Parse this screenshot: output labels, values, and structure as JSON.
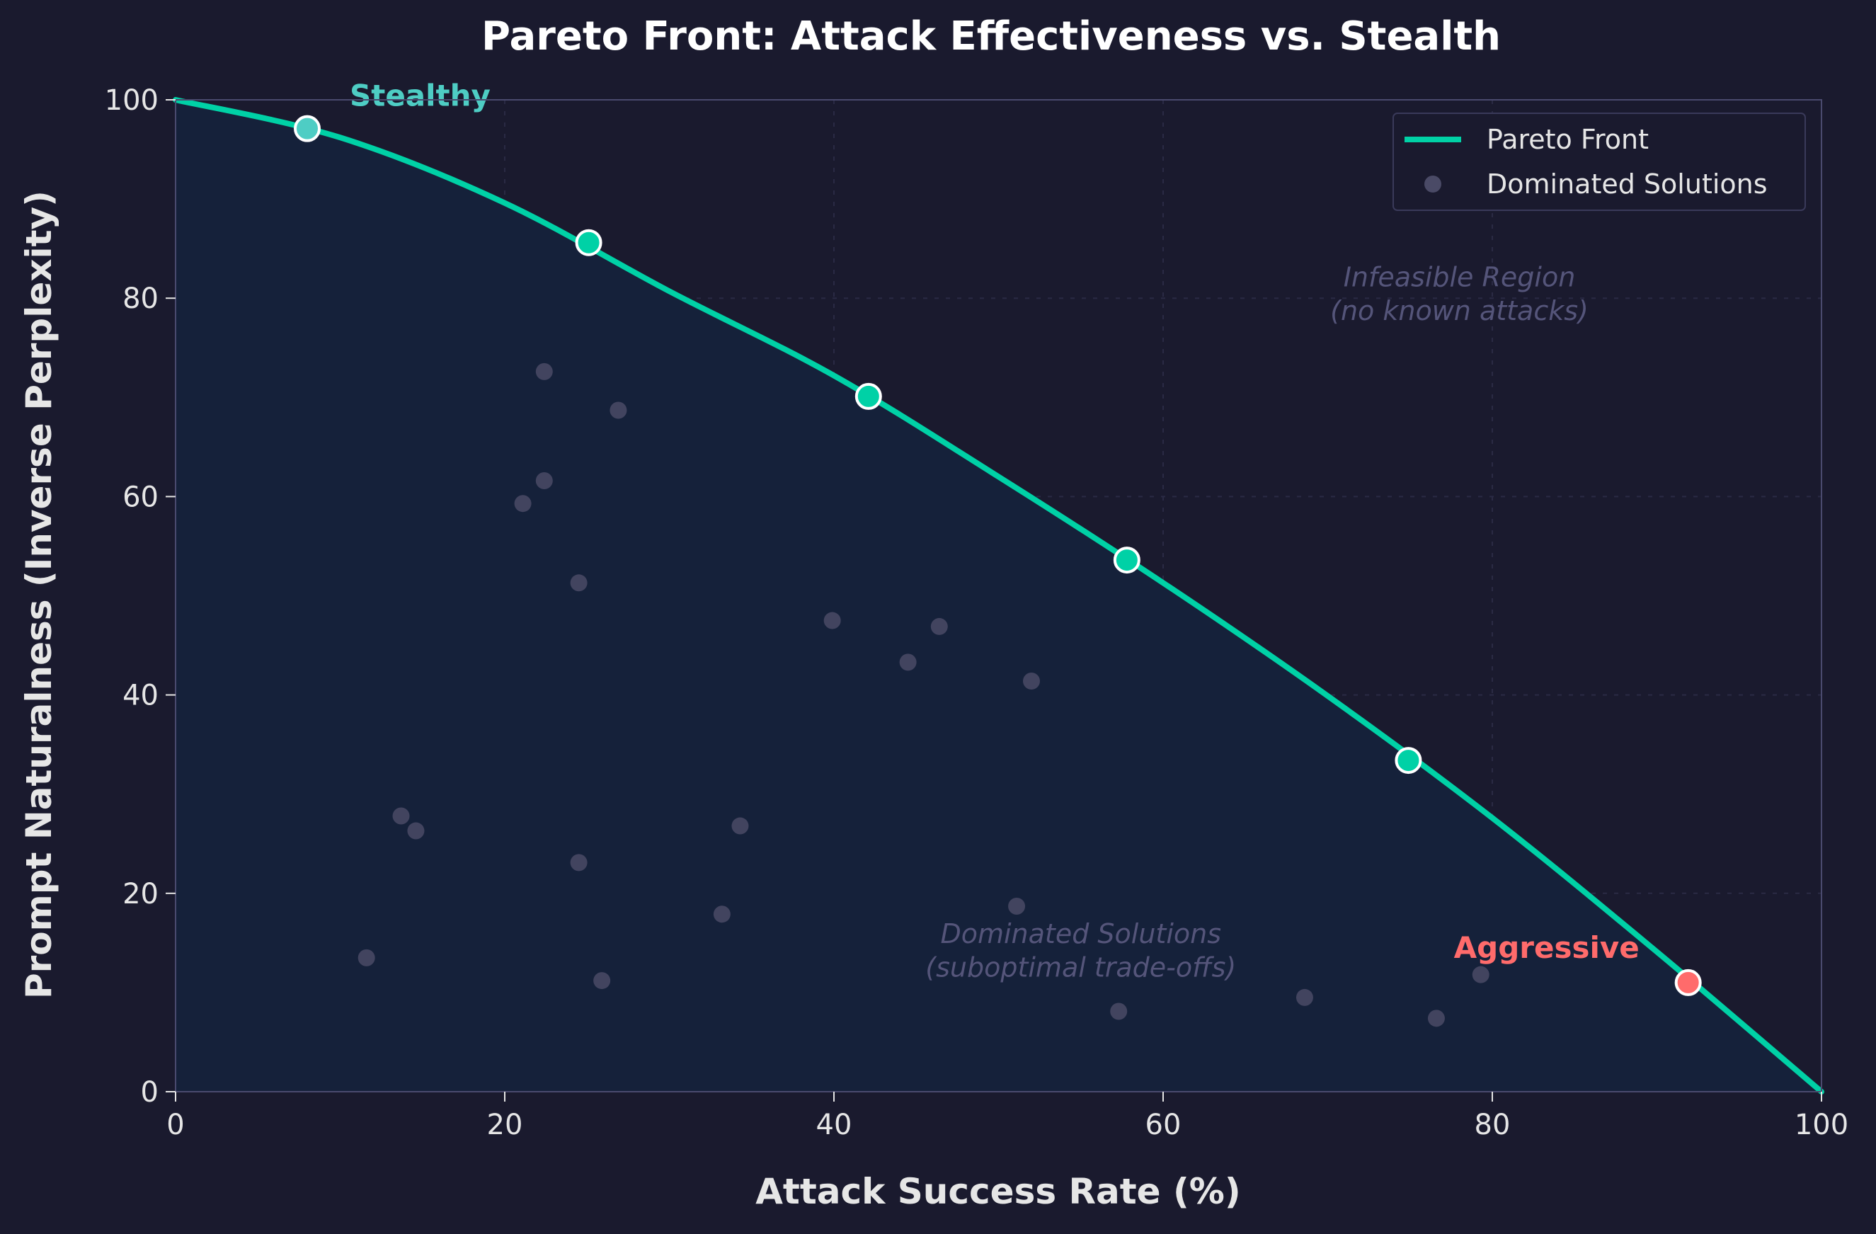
{
  "colors": {
    "background": "#1a1a2e",
    "plot_fill": "#15213a",
    "axis": "#4a4a6e",
    "grid": "#2a2a44",
    "front": "#00d1a6",
    "dominated": "#4a4a66",
    "stealthy": "#4ecdc4",
    "aggressive": "#ff6b6b",
    "text": "#e6e6e6",
    "annotation": "#55557a"
  },
  "chart_data": {
    "type": "scatter",
    "title": "Pareto Front: Attack Effectiveness vs. Stealth",
    "xlabel": "Attack Success Rate (%)",
    "ylabel": "Prompt Naturalness (Inverse Perplexity)",
    "xlim": [
      0,
      100
    ],
    "ylim": [
      0,
      100
    ],
    "xticks": [
      "0",
      "20",
      "40",
      "60",
      "80",
      "100"
    ],
    "yticks": [
      "0",
      "20",
      "40",
      "60",
      "80",
      "100"
    ],
    "grid": true,
    "legend": {
      "position": "top-right",
      "entries": [
        "Pareto Front",
        "Dominated Solutions"
      ]
    },
    "series": [
      {
        "name": "Pareto Front",
        "kind": "line",
        "x": [
          0,
          10,
          20,
          30,
          40,
          50,
          60,
          70,
          80,
          90,
          100
        ],
        "y": [
          100,
          96.2,
          89.6,
          80.7,
          72.2,
          62.0,
          51.3,
          39.9,
          27.6,
          14.1,
          0
        ]
      },
      {
        "name": "Dominated Solutions",
        "kind": "scatter",
        "x": [
          22.4,
          26.9,
          22.4,
          21.1,
          24.5,
          39.9,
          46.4,
          44.5,
          52.0,
          13.7,
          14.6,
          34.3,
          24.5,
          33.2,
          11.6,
          25.9,
          51.1,
          57.3,
          68.6,
          76.6,
          79.3
        ],
        "y": [
          72.6,
          68.7,
          61.6,
          59.3,
          51.3,
          47.5,
          46.9,
          43.3,
          41.4,
          27.8,
          26.3,
          26.8,
          23.1,
          17.9,
          13.5,
          11.2,
          18.7,
          8.1,
          9.5,
          7.4,
          11.8
        ]
      }
    ],
    "highlighted_points": {
      "x": [
        8.0,
        25.1,
        42.1,
        57.8,
        74.9,
        91.9
      ],
      "y": [
        97.1,
        85.6,
        70.1,
        53.6,
        33.4,
        11.0
      ]
    },
    "annotations": {
      "stealthy": {
        "text": "Stealthy",
        "x": 8.0,
        "y": 97.1
      },
      "aggressive": {
        "text": "Aggressive",
        "x": 91.9,
        "y": 11.0
      },
      "infeasible": {
        "line1": "Infeasible Region",
        "line2": "(no known attacks)"
      },
      "dominated": {
        "line1": "Dominated Solutions",
        "line2": "(suboptimal trade-offs)"
      }
    }
  }
}
